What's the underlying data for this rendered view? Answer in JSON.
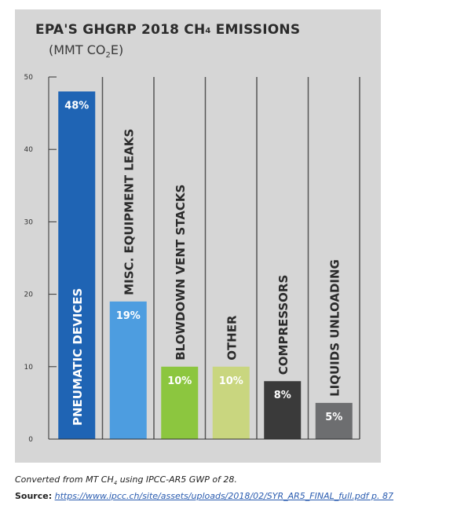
{
  "title_main": "EPA'S GHGRP 2018 CH",
  "title_sub": "4",
  "title_tail": " EMISSIONS",
  "subtitle_main": "(MMT CO",
  "subtitle_sub": "2",
  "subtitle_tail": "E)",
  "footnote_main": "Converted from MT CH",
  "footnote_sub": "4",
  "footnote_tail": " using IPCC-AR5 GWP of 28.",
  "source_label": "Source:",
  "source_link": "https://www.ipcc.ch/site/assets/uploads/2018/02/SYR_AR5_FINAL_full.pdf p. 87",
  "chart_data": {
    "type": "bar",
    "title": "EPA'S GHGRP 2018 CH4 EMISSIONS",
    "ylabel": "(MMT CO2E)",
    "xlabel": "",
    "ylim": [
      0,
      50
    ],
    "yticks": [
      "0",
      "10",
      "20",
      "30",
      "40",
      "50"
    ],
    "grid": false,
    "categories": [
      "PNEUMATIC DEVICES",
      "MISC. EQUIPMENT LEAKS",
      "BLOWDOWN VENT STACKS",
      "OTHER",
      "COMPRESSORS",
      "LIQUIDS UNLOADING"
    ],
    "values": [
      48,
      19,
      10,
      10,
      8,
      5
    ],
    "labels": [
      "48%",
      "19%",
      "10%",
      "10%",
      "8%",
      "5%"
    ],
    "colors": [
      "#1f64b4",
      "#4d9de0",
      "#8cc63f",
      "#c9d67f",
      "#3a3a3a",
      "#6d6e70"
    ]
  }
}
